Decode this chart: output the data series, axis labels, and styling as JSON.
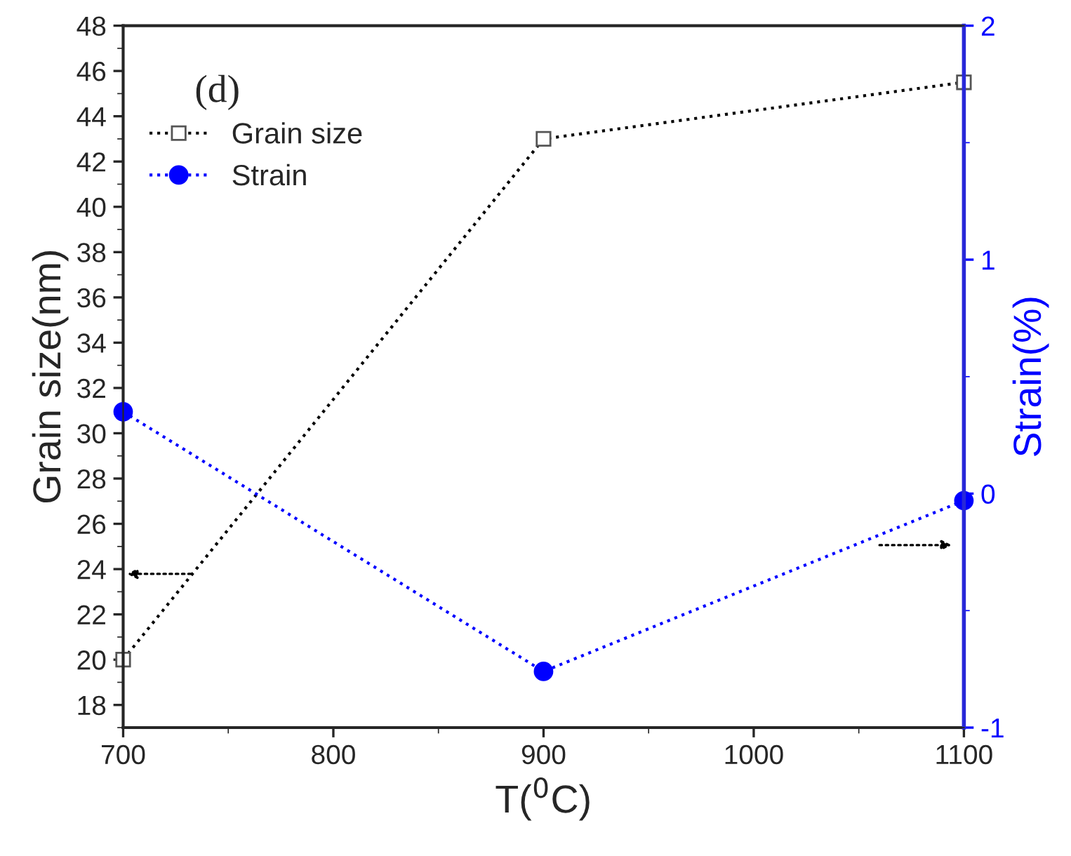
{
  "chart_data": {
    "type": "line",
    "xlabel": "T($^{0}$C)",
    "ylabel": "Grain size(nm)",
    "y2label": "Strain(%)",
    "annotations": [
      "(d)"
    ],
    "x": [
      700,
      900,
      1100
    ],
    "series": [
      {
        "name": "Grain size",
        "color": "#000000",
        "values": [
          20,
          43,
          45.5
        ],
        "marker": "square"
      },
      {
        "name": "Strain",
        "color": "#0000ff",
        "values": [
          0.35,
          -0.76,
          -0.03
        ],
        "marker": "circle",
        "axis": "y2"
      }
    ],
    "xlim": [
      700,
      1100
    ],
    "xticks": [
      700,
      800,
      900,
      1000,
      1100
    ],
    "ylim": [
      17,
      48
    ],
    "yticks": [
      18,
      20,
      22,
      24,
      26,
      28,
      30,
      32,
      34,
      36,
      38,
      40,
      42,
      44,
      46,
      48
    ],
    "y2lim": [
      -1,
      2
    ],
    "y2ticks": [
      -1,
      0,
      1,
      2
    ],
    "line_style": "dotted",
    "legend": "top left",
    "grid": false
  }
}
